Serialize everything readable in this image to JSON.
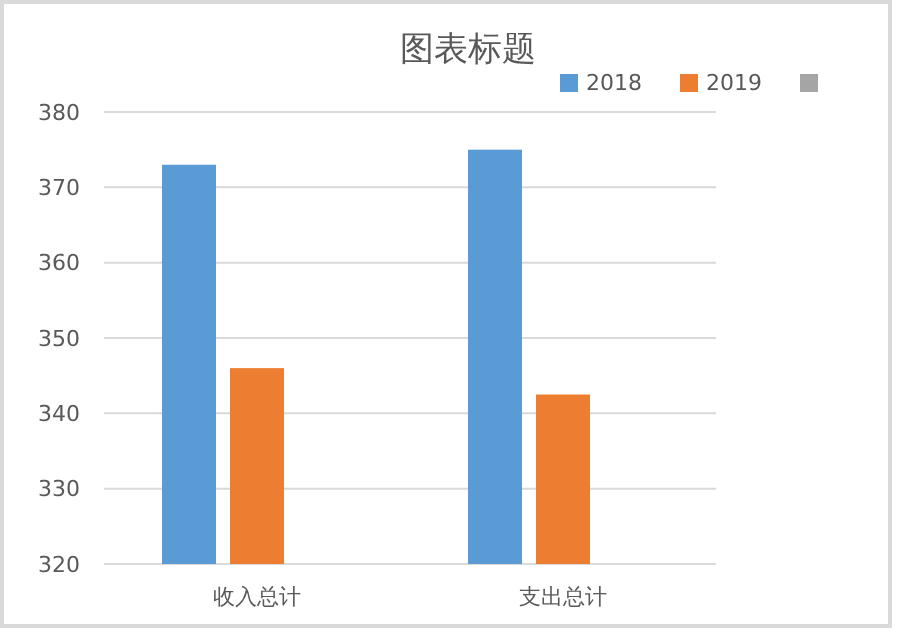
{
  "chart_data": {
    "type": "bar",
    "title": "图表标题",
    "categories": [
      "收入总计",
      "支出总计"
    ],
    "series": [
      {
        "name": "2018",
        "color": "#5b9bd5",
        "values": [
          373,
          375
        ]
      },
      {
        "name": "2019",
        "color": "#ed7d31",
        "values": [
          346,
          342.5
        ]
      },
      {
        "color": "#a5a5a5",
        "values": [
          null,
          null
        ]
      }
    ],
    "ylim": [
      320,
      380
    ],
    "yticks": [
      320,
      330,
      340,
      350,
      360,
      370,
      380
    ],
    "grid": "y",
    "legend": "top right"
  }
}
